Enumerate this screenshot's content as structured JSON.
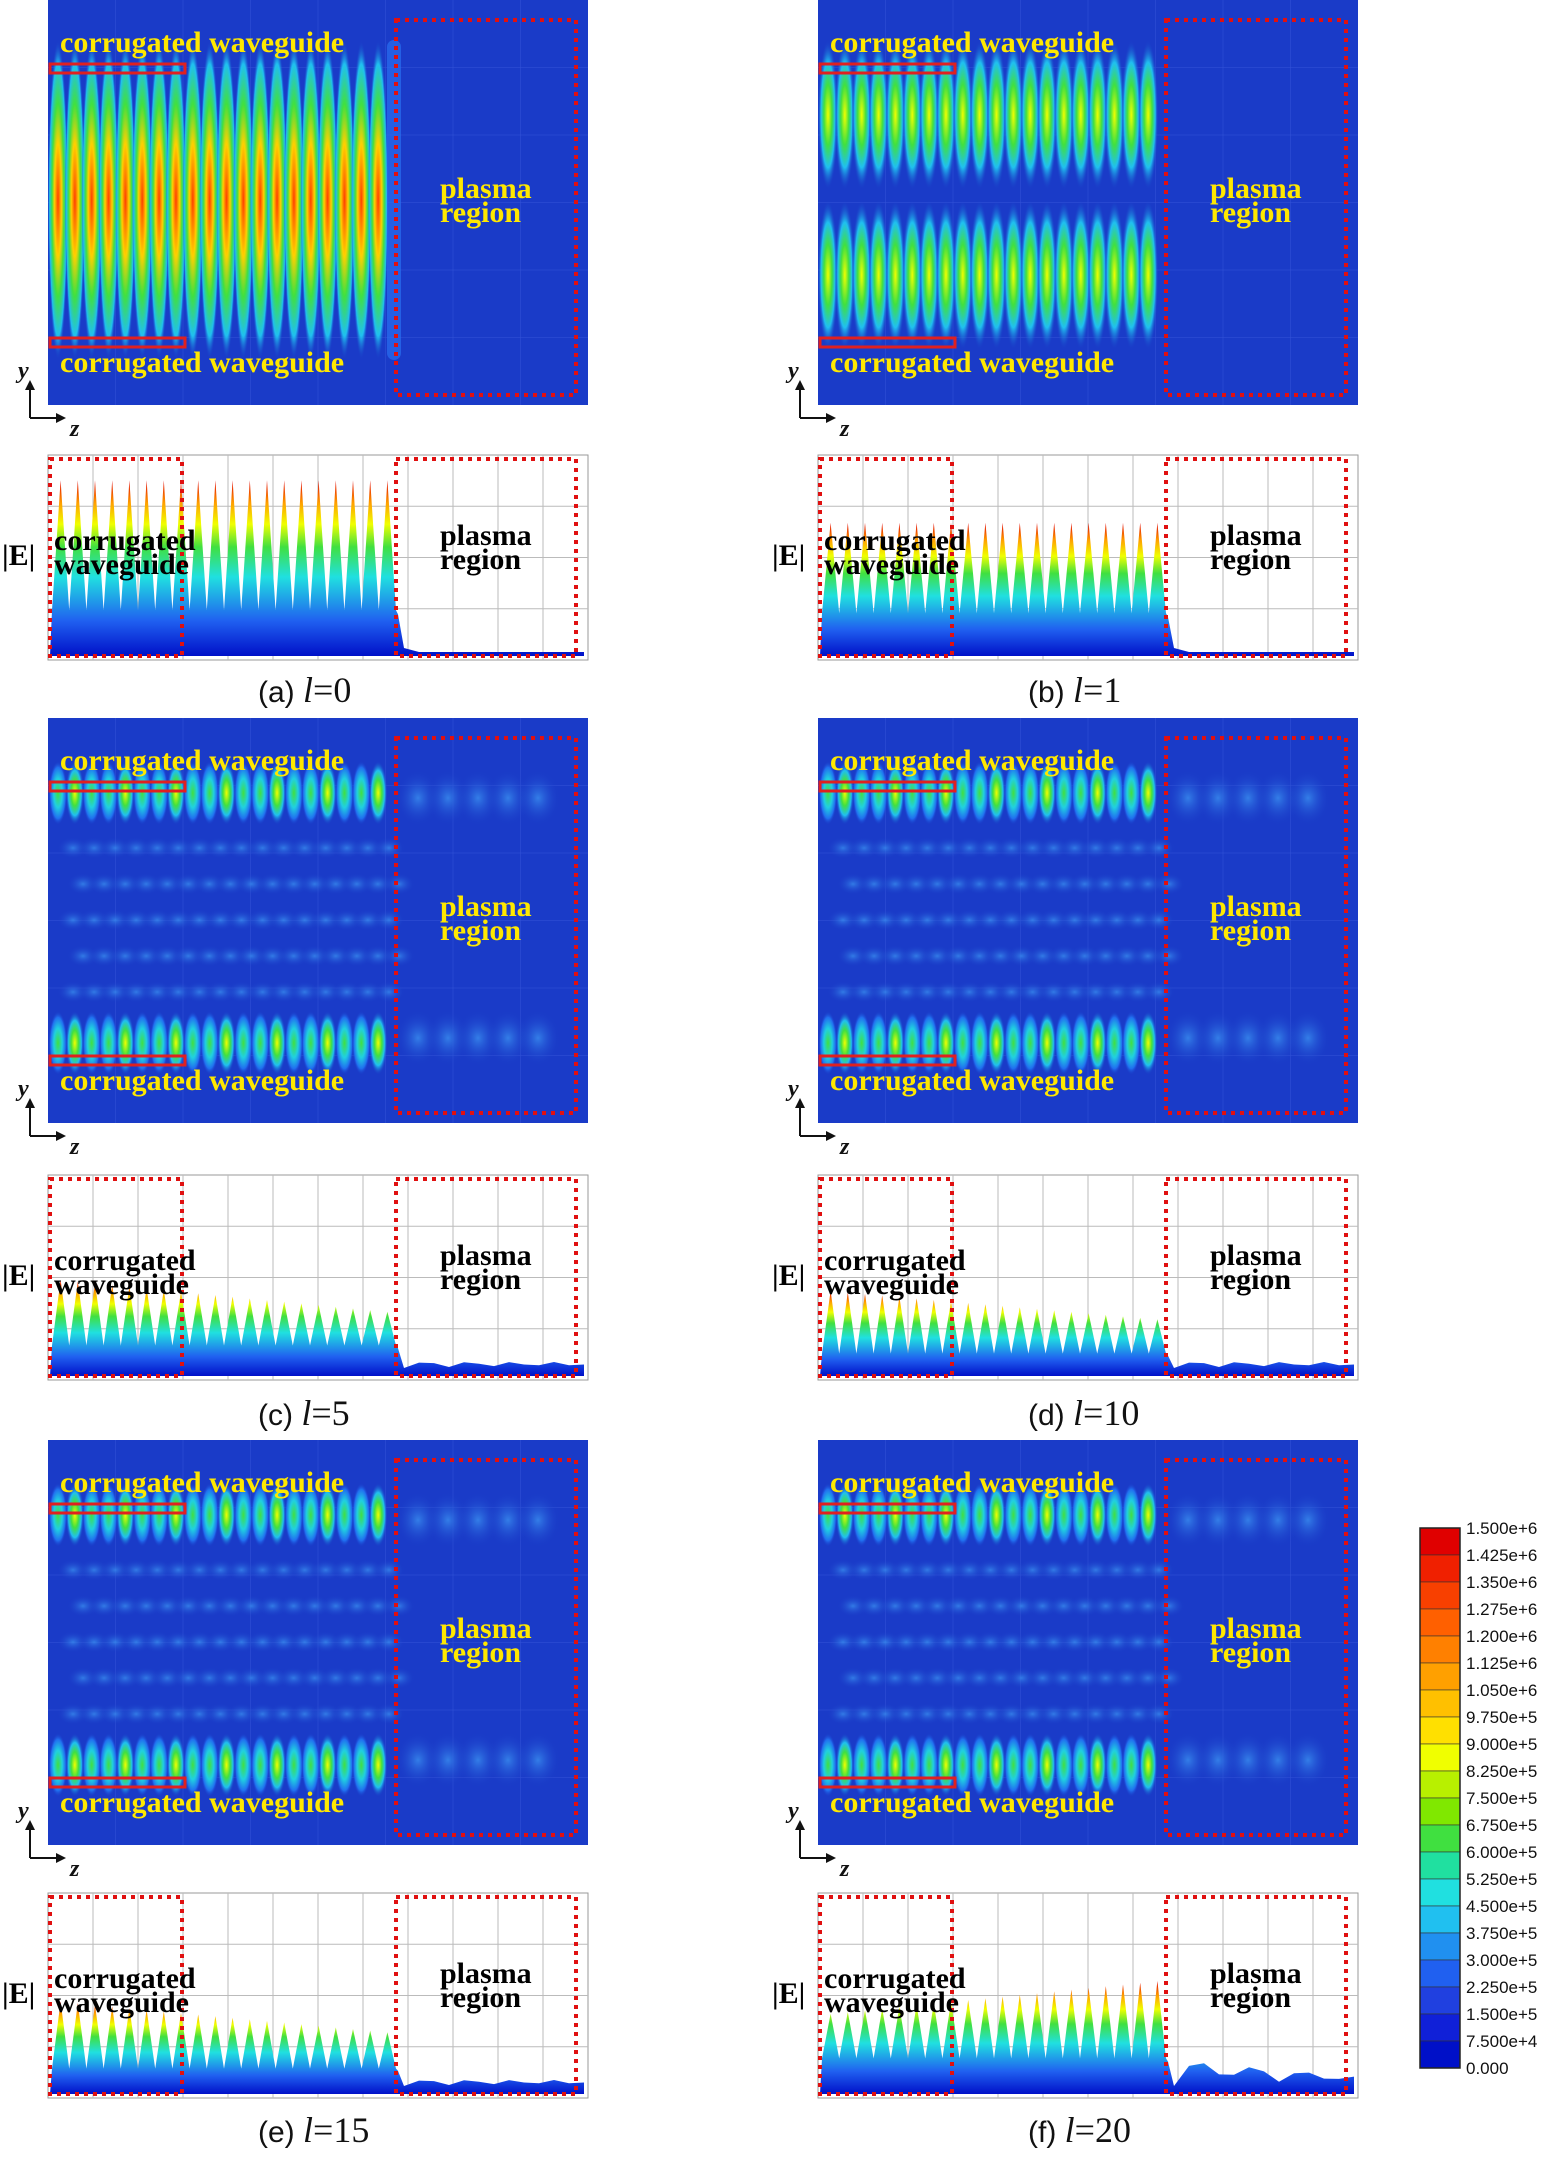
{
  "panels": [
    {
      "id": "a",
      "letter": "(a)",
      "l_label": "l",
      "l_value": "=0",
      "field_mode": "uniform",
      "strength": 1.0,
      "line_peak": 0.95,
      "line_base": 0.45,
      "plasma_tail": "flat"
    },
    {
      "id": "b",
      "letter": "(b)",
      "l_label": "l",
      "l_value": "=1",
      "field_mode": "two-beam",
      "strength": 0.7,
      "line_peak": 0.72,
      "line_base": 0.42,
      "plasma_tail": "flat"
    },
    {
      "id": "c",
      "letter": "(c)",
      "l_label": "l",
      "l_value": "=5",
      "field_mode": "edge",
      "strength": 0.55,
      "line_peak": 0.52,
      "line_base": 0.3,
      "plasma_tail": "wavy"
    },
    {
      "id": "d",
      "letter": "(d)",
      "l_label": "l",
      "l_value": "=10",
      "field_mode": "edge",
      "strength": 0.45,
      "line_peak": 0.46,
      "line_base": 0.22,
      "plasma_tail": "wavy"
    },
    {
      "id": "e",
      "letter": "(e)",
      "l_label": "l",
      "l_value": "=15",
      "field_mode": "edge",
      "strength": 0.55,
      "line_peak": 0.5,
      "line_base": 0.25,
      "plasma_tail": "wavy"
    },
    {
      "id": "f",
      "letter": "(f)",
      "l_label": "l",
      "l_value": "=20",
      "field_mode": "edge",
      "strength": 0.65,
      "line_peak": 0.62,
      "line_base": 0.35,
      "plasma_tail": "bumpy"
    }
  ],
  "labels": {
    "corrugated_waveguide": "corrugated waveguide",
    "corrugated": "corrugated",
    "waveguide": "waveguide",
    "plasma": "plasma",
    "region": "region",
    "E_abs": "|E|",
    "axis_y": "y",
    "axis_z": "z"
  },
  "colorbar": {
    "ticks": [
      "1.500e+6",
      "1.425e+6",
      "1.350e+6",
      "1.275e+6",
      "1.200e+6",
      "1.125e+6",
      "1.050e+6",
      "9.750e+5",
      "9.000e+5",
      "8.250e+5",
      "7.500e+5",
      "6.750e+5",
      "6.000e+5",
      "5.250e+5",
      "4.500e+5",
      "3.750e+5",
      "3.000e+5",
      "2.250e+5",
      "1.500e+5",
      "7.500e+4",
      "0.000"
    ],
    "colors": [
      "#e00000",
      "#f02000",
      "#f84000",
      "#ff6000",
      "#ff8000",
      "#ffa000",
      "#ffc000",
      "#ffe000",
      "#f0ff00",
      "#b8f000",
      "#80e800",
      "#40e040",
      "#20e0a0",
      "#20e0e0",
      "#20c0f0",
      "#2090f0",
      "#2060f0",
      "#2040e0",
      "#1020d8",
      "#0010c8",
      "#0000b8"
    ]
  },
  "colors": {
    "field_bg": "#1a3bc8",
    "dashed_box": "#e01010",
    "waveguide_box": "#e02020",
    "label_yellow": "#ffe800"
  }
}
